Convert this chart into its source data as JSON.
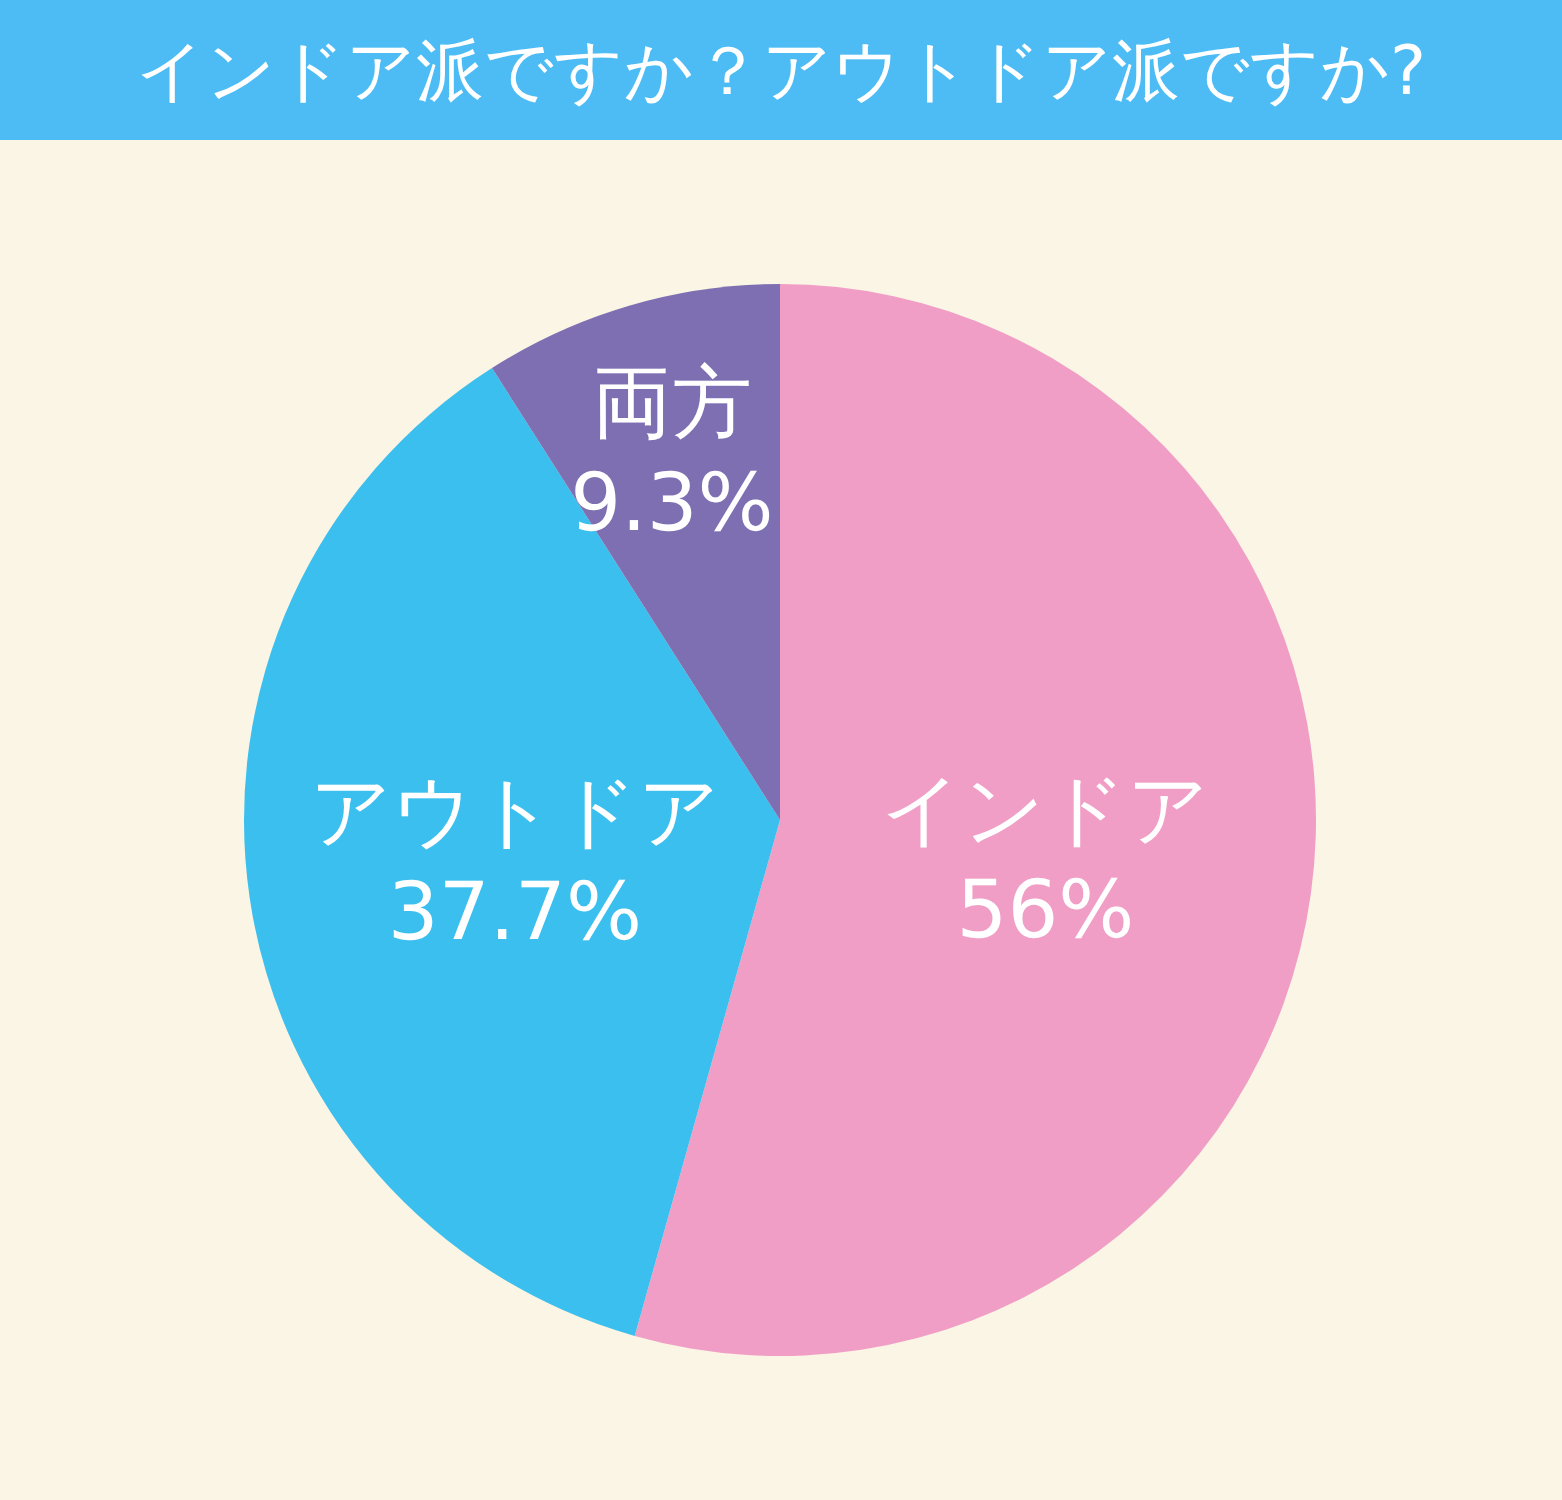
{
  "chart_data": {
    "type": "pie",
    "title": "インドア派ですか？アウトドア派ですか?",
    "categories": [
      "インドア",
      "アウトドア",
      "両方"
    ],
    "values": [
      56,
      37.7,
      9.3
    ],
    "value_labels": [
      "56%",
      "37.7%",
      "9.3%"
    ],
    "colors": [
      "#f19ec6",
      "#3bbfee",
      "#7d6fb2"
    ]
  }
}
